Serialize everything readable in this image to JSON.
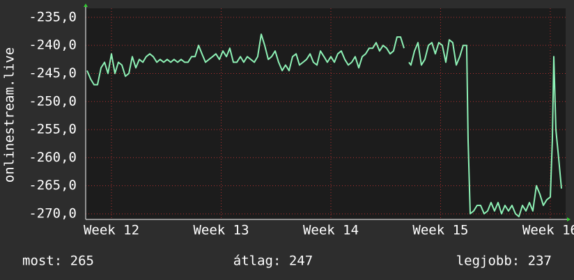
{
  "chart_data": {
    "type": "line",
    "y_label": "onlinestream.live",
    "xlim": [
      11.765,
      16.14
    ],
    "ylim": [
      -271,
      -233.4
    ],
    "xticks": [
      {
        "value": 12,
        "label": "Week 12"
      },
      {
        "value": 13,
        "label": "Week 13"
      },
      {
        "value": 14,
        "label": "Week 14"
      },
      {
        "value": 15,
        "label": "Week 15"
      },
      {
        "value": 16,
        "label": "Week 16"
      }
    ],
    "yticks": [
      {
        "value": -235,
        "label": "-235,0"
      },
      {
        "value": -240,
        "label": "-240,0"
      },
      {
        "value": -245,
        "label": "-245,0"
      },
      {
        "value": -250,
        "label": "-250,0"
      },
      {
        "value": -255,
        "label": "-255,0"
      },
      {
        "value": -260,
        "label": "-260,0"
      },
      {
        "value": -265,
        "label": "-265,0"
      },
      {
        "value": -270,
        "label": "-270,0"
      }
    ],
    "grid": true,
    "x": [
      11.778,
      11.81,
      11.841,
      11.873,
      11.905,
      11.937,
      11.968,
      12.0,
      12.032,
      12.063,
      12.095,
      12.127,
      12.159,
      12.19,
      12.222,
      12.254,
      12.286,
      12.317,
      12.349,
      12.381,
      12.413,
      12.444,
      12.476,
      12.508,
      12.54,
      12.571,
      12.603,
      12.635,
      12.667,
      12.698,
      12.73,
      12.762,
      12.794,
      12.825,
      12.857,
      12.889,
      12.921,
      12.952,
      12.984,
      13.016,
      13.048,
      13.079,
      13.111,
      13.143,
      13.175,
      13.206,
      13.238,
      13.27,
      13.302,
      13.333,
      13.365,
      13.397,
      13.429,
      13.46,
      13.492,
      13.524,
      13.556,
      13.587,
      13.619,
      13.651,
      13.683,
      13.714,
      13.746,
      13.778,
      13.81,
      13.841,
      13.873,
      13.905,
      13.937,
      13.968,
      14.0,
      14.032,
      14.063,
      14.095,
      14.127,
      14.159,
      14.19,
      14.222,
      14.254,
      14.286,
      14.317,
      14.349,
      14.381,
      14.413,
      14.444,
      14.476,
      14.508,
      14.54,
      14.571,
      14.603,
      14.635,
      14.667,
      14.686,
      14.711,
      14.73,
      14.762,
      14.794,
      14.825,
      14.857,
      14.889,
      14.921,
      14.952,
      14.984,
      15.016,
      15.048,
      15.079,
      15.111,
      15.143,
      15.175,
      15.206,
      15.238,
      15.251,
      15.27,
      15.302,
      15.333,
      15.365,
      15.397,
      15.429,
      15.46,
      15.492,
      15.524,
      15.556,
      15.587,
      15.619,
      15.651,
      15.683,
      15.714,
      15.746,
      15.778,
      15.81,
      15.841,
      15.873,
      15.905,
      15.937,
      15.968,
      16.0,
      16.019,
      16.032,
      16.051,
      16.076,
      16.102
    ],
    "series": [
      {
        "color": "#8ef2b6",
        "values": [
          -244.5,
          -246,
          -247,
          -247,
          -244,
          -243,
          -245,
          -241.5,
          -245,
          -243,
          -243.5,
          -245.5,
          -245,
          -242,
          -244,
          -242.5,
          -243,
          -242,
          -241.5,
          -242,
          -243,
          -242.5,
          -243,
          -242.5,
          -243,
          -242.5,
          -243,
          -242.5,
          -243,
          -243,
          -242,
          -242,
          -240,
          -241.5,
          -243,
          -242.5,
          -242,
          -241.5,
          -242.5,
          -241,
          -242,
          -240.5,
          -243,
          -243,
          -242,
          -243,
          -242,
          -242.5,
          -243,
          -242,
          -238,
          -240,
          -242.5,
          -242,
          -241,
          -243,
          -244.5,
          -243.5,
          -244.5,
          -242,
          -241.5,
          -243.5,
          -243,
          -242.5,
          -241.5,
          -243,
          -243.5,
          -241,
          -242,
          -243,
          -242,
          -243,
          -241.5,
          -241,
          -242.5,
          -243.5,
          -243,
          -242,
          -244,
          -242,
          -241.5,
          -240.5,
          -240.5,
          -239.5,
          -241,
          -240,
          -240.5,
          -241.5,
          -241,
          -238.5,
          -238.5,
          -240.5,
          null,
          -243,
          -243.5,
          -241,
          -239.5,
          -243.5,
          -242.5,
          -240,
          -239.5,
          -241.5,
          -239.5,
          -240,
          -243,
          -239,
          -239.5,
          -243.5,
          -242,
          -240,
          -240,
          -257,
          -270,
          -269.5,
          -268.5,
          -268.5,
          -270,
          -269.5,
          -268,
          -269.5,
          -268,
          -270,
          -268.5,
          -269.5,
          -268.5,
          -270,
          -270.5,
          -268.5,
          -269.5,
          -268,
          -269.5,
          -265,
          -266.5,
          -268.5,
          -267.5,
          -267,
          -257,
          -242,
          -255,
          -260,
          -265.5
        ]
      }
    ],
    "stats": [
      "most: 265",
      "átlag: 247",
      "legjobb: 237"
    ]
  }
}
